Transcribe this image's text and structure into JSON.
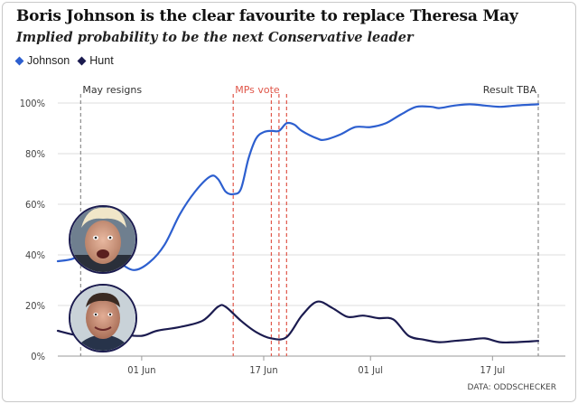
{
  "title": "Boris Johnson is the clear favourite to replace Theresa May",
  "subtitle": "Implied probability to be the next Conservative leader",
  "source": "DATA: ODDSCHECKER",
  "colors": {
    "johnson": "#2d5fcf",
    "hunt": "#1b1b4f",
    "event_gray": "#8c8c8c",
    "event_red": "#e0574a",
    "grid": "#dcdcdc"
  },
  "chart_data": {
    "type": "line",
    "ylim": [
      0,
      100
    ],
    "yticks": [
      0,
      20,
      40,
      60,
      80,
      100
    ],
    "ytick_labels": [
      "0%",
      "20%",
      "40%",
      "60%",
      "80%",
      "100%"
    ],
    "xlim": [
      "2019-05-21",
      "2019-07-23"
    ],
    "xticks": [
      {
        "date": "2019-06-01",
        "label": "01 Jun"
      },
      {
        "date": "2019-06-17",
        "label": "17 Jun"
      },
      {
        "date": "2019-07-01",
        "label": "01 Jul"
      },
      {
        "date": "2019-07-17",
        "label": "17 Jul"
      }
    ],
    "events": [
      {
        "date": "2019-05-24",
        "label": "May resigns",
        "style": "gray"
      },
      {
        "date": "2019-06-13",
        "label": "MPs vote",
        "style": "red"
      },
      {
        "date": "2019-06-18",
        "label": "",
        "style": "red"
      },
      {
        "date": "2019-06-19",
        "label": "",
        "style": "red"
      },
      {
        "date": "2019-06-20",
        "label": "",
        "style": "red"
      },
      {
        "date": "2019-07-23",
        "label": "Result TBA",
        "style": "gray"
      }
    ],
    "series": [
      {
        "name": "Johnson",
        "color": "#2d5fcf",
        "points": [
          [
            "2019-05-21",
            37.5
          ],
          [
            "2019-05-23",
            38.5
          ],
          [
            "2019-05-25",
            42
          ],
          [
            "2019-05-27",
            40.5
          ],
          [
            "2019-05-29",
            37
          ],
          [
            "2019-05-31",
            34
          ],
          [
            "2019-06-02",
            37
          ],
          [
            "2019-06-04",
            44
          ],
          [
            "2019-06-06",
            56
          ],
          [
            "2019-06-08",
            65
          ],
          [
            "2019-06-10",
            71
          ],
          [
            "2019-06-11",
            70
          ],
          [
            "2019-06-12",
            65
          ],
          [
            "2019-06-13",
            64
          ],
          [
            "2019-06-14",
            66
          ],
          [
            "2019-06-15",
            78
          ],
          [
            "2019-06-16",
            86
          ],
          [
            "2019-06-17",
            88.5
          ],
          [
            "2019-06-18",
            89
          ],
          [
            "2019-06-19",
            89
          ],
          [
            "2019-06-20",
            92
          ],
          [
            "2019-06-21",
            91.5
          ],
          [
            "2019-06-22",
            89
          ],
          [
            "2019-06-24",
            86
          ],
          [
            "2019-06-25",
            85.5
          ],
          [
            "2019-06-27",
            87.5
          ],
          [
            "2019-06-29",
            90.5
          ],
          [
            "2019-07-01",
            90.5
          ],
          [
            "2019-07-03",
            92
          ],
          [
            "2019-07-05",
            95.5
          ],
          [
            "2019-07-07",
            98.5
          ],
          [
            "2019-07-09",
            98.5
          ],
          [
            "2019-07-10",
            98
          ],
          [
            "2019-07-12",
            99
          ],
          [
            "2019-07-14",
            99.5
          ],
          [
            "2019-07-16",
            99
          ],
          [
            "2019-07-18",
            98.5
          ],
          [
            "2019-07-20",
            99
          ],
          [
            "2019-07-23",
            99.5
          ]
        ]
      },
      {
        "name": "Hunt",
        "color": "#1b1b4f",
        "points": [
          [
            "2019-05-21",
            10
          ],
          [
            "2019-05-23",
            8.5
          ],
          [
            "2019-05-25",
            7.5
          ],
          [
            "2019-05-27",
            8
          ],
          [
            "2019-05-29",
            8.5
          ],
          [
            "2019-06-01",
            8
          ],
          [
            "2019-06-03",
            10
          ],
          [
            "2019-06-06",
            11.5
          ],
          [
            "2019-06-09",
            14
          ],
          [
            "2019-06-11",
            19.5
          ],
          [
            "2019-06-12",
            19.5
          ],
          [
            "2019-06-14",
            14
          ],
          [
            "2019-06-16",
            9.5
          ],
          [
            "2019-06-18",
            7
          ],
          [
            "2019-06-20",
            7.5
          ],
          [
            "2019-06-22",
            16
          ],
          [
            "2019-06-24",
            21.5
          ],
          [
            "2019-06-26",
            19
          ],
          [
            "2019-06-28",
            15.5
          ],
          [
            "2019-06-30",
            16
          ],
          [
            "2019-07-02",
            15
          ],
          [
            "2019-07-04",
            14.5
          ],
          [
            "2019-07-06",
            8
          ],
          [
            "2019-07-08",
            6.5
          ],
          [
            "2019-07-10",
            5.5
          ],
          [
            "2019-07-12",
            6
          ],
          [
            "2019-07-14",
            6.5
          ],
          [
            "2019-07-16",
            7
          ],
          [
            "2019-07-18",
            5.5
          ],
          [
            "2019-07-20",
            5.5
          ],
          [
            "2019-07-23",
            6
          ]
        ]
      }
    ]
  }
}
